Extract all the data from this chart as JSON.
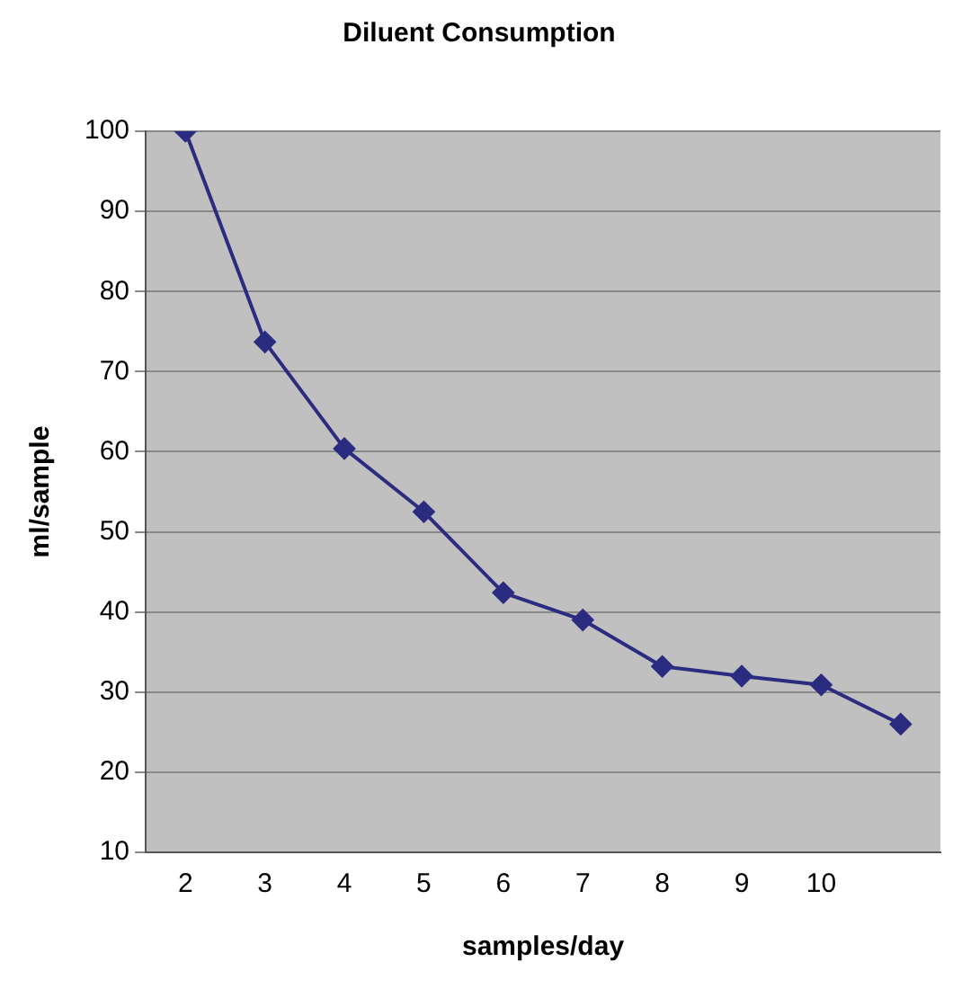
{
  "chart_data": {
    "type": "line",
    "title": "Diluent Consumption",
    "xlabel": "samples/day",
    "ylabel": "ml/sample",
    "categories": [
      "2",
      "3",
      "4",
      "5",
      "6",
      "7",
      "8",
      "9",
      "10",
      null
    ],
    "series": [
      {
        "color": "#2b2b80",
        "values": [
          100,
          73.7,
          60.4,
          52.5,
          42.4,
          39,
          33.2,
          32,
          30.9,
          26
        ]
      }
    ],
    "ylim": [
      10,
      100
    ],
    "yticks": [
      10,
      20,
      30,
      40,
      50,
      60,
      70,
      80,
      90,
      100
    ],
    "grid": "y",
    "legend": false,
    "marker": "diamond",
    "line_style": "solid"
  }
}
